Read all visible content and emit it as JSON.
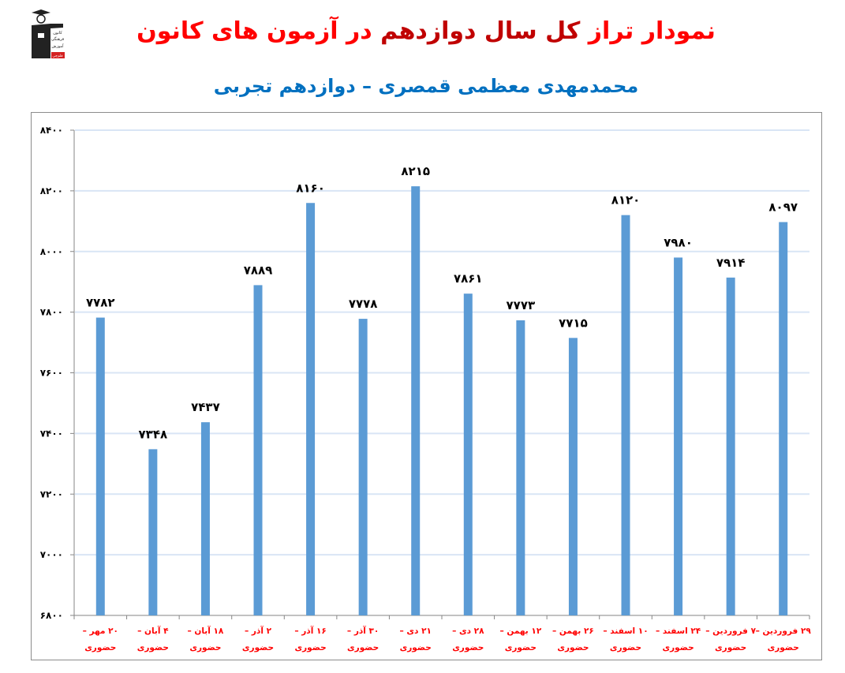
{
  "header": {
    "title_part1": "نمودار تراز",
    "title_part2": "کل سال دوازدهم",
    "title_part3": "در آزمون های کانون",
    "subtitle": "محمدمهدی معظمی قمصری – دوازدهم تجربی",
    "logo": {
      "name": "kanoon-logo",
      "lines": [
        "کانون",
        "فرهنگی",
        "آموزش",
        "قلم‌چی"
      ]
    }
  },
  "colors": {
    "bar": "#5b9bd5",
    "grid": "#d9e5f5",
    "axis": "#868686",
    "title": "#ff0000",
    "title_dark": "#c00000",
    "subtitle": "#0070c0",
    "xlabel": "#ff0000"
  },
  "chart_data": {
    "type": "bar",
    "title": "نمودار تراز کل سال دوازدهم در آزمون های کانون",
    "subtitle": "محمدمهدی معظمی قمصری – دوازدهم تجربی",
    "xlabel": "",
    "ylabel": "",
    "ylim": [
      6800,
      8400
    ],
    "yticks": [
      6800,
      7000,
      7200,
      7400,
      7600,
      7800,
      8000,
      8200,
      8400
    ],
    "ytick_labels": [
      "۶۸۰۰",
      "۷۰۰۰",
      "۷۲۰۰",
      "۷۴۰۰",
      "۷۶۰۰",
      "۷۸۰۰",
      "۸۰۰۰",
      "۸۲۰۰",
      "۸۴۰۰"
    ],
    "grid": true,
    "legend": "none",
    "categories": [
      "۲۰ مهر – حضوری",
      "۴ آبان – حضوری",
      "۱۸ آبان – حضوری",
      "۲ آذر – حضوری",
      "۱۶ آذر – حضوری",
      "۳۰ آذر – حضوری",
      "۲۱ دی – حضوری",
      "۲۸ دی – حضوری",
      "۱۲ بهمن – حضوری",
      "۲۶ بهمن – حضوری",
      "۱۰ اسفند – حضوری",
      "۲۴ اسفند – حضوری",
      "۷ فروردین – حضوری",
      "۲۹ فروردین – حضوری"
    ],
    "category_line1": [
      "۲۰ مهر –",
      "۴ آبان –",
      "۱۸ آبان –",
      "۲ آذر –",
      "۱۶ آذر –",
      "۳۰ آذر –",
      "۲۱ دی –",
      "۲۸ دی –",
      "۱۲ بهمن –",
      "۲۶ بهمن –",
      "۱۰ اسفند –",
      "۲۴ اسفند –",
      "۷ فروردین –",
      "۲۹ فروردین –"
    ],
    "category_line2": "حضوری",
    "values": [
      7782,
      7348,
      7437,
      7889,
      8160,
      7778,
      8215,
      7861,
      7773,
      7715,
      8120,
      7980,
      7914,
      8097
    ],
    "value_labels": [
      "۷۷۸۲",
      "۷۳۴۸",
      "۷۴۳۷",
      "۷۸۸۹",
      "۸۱۶۰",
      "۷۷۷۸",
      "۸۲۱۵",
      "۷۸۶۱",
      "۷۷۷۳",
      "۷۷۱۵",
      "۸۱۲۰",
      "۷۹۸۰",
      "۷۹۱۴",
      "۸۰۹۷"
    ]
  }
}
